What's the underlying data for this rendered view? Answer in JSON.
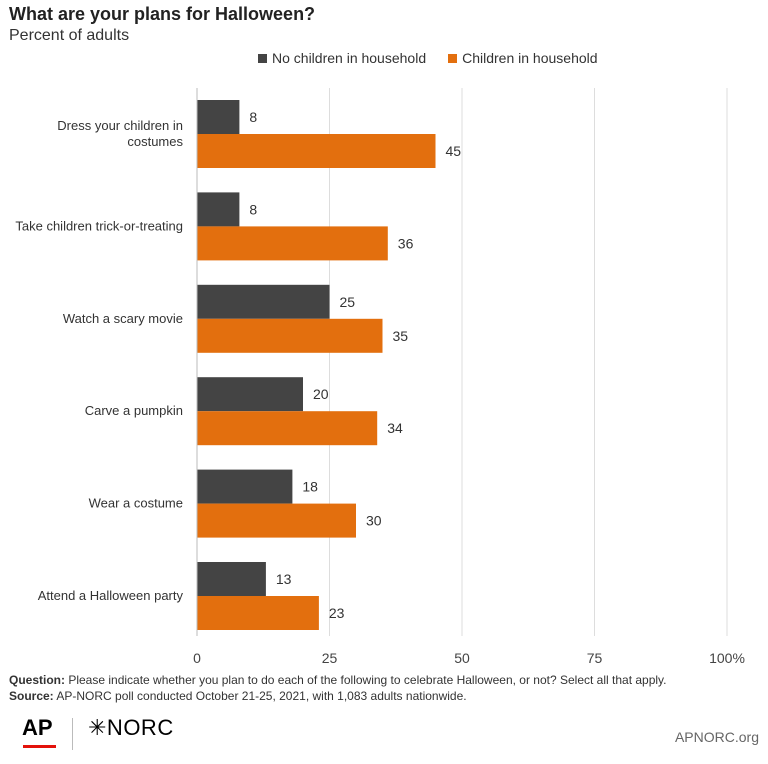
{
  "header": {
    "title": "What are your plans for Halloween?",
    "subtitle": "Percent of adults"
  },
  "legend": {
    "items": [
      {
        "label": "No children in household",
        "color": "#444444"
      },
      {
        "label": "Children in household",
        "color": "#e36f0e"
      }
    ]
  },
  "chart_data": {
    "type": "bar",
    "orientation": "horizontal",
    "categories": [
      [
        "Dress your children in",
        "costumes"
      ],
      [
        "Take children trick-or-treating"
      ],
      [
        "Watch a scary movie"
      ],
      [
        "Carve a pumpkin"
      ],
      [
        "Wear a costume"
      ],
      [
        "Attend a Halloween party"
      ]
    ],
    "series": [
      {
        "name": "No children in household",
        "color": "#444444",
        "values": [
          8,
          8,
          25,
          20,
          18,
          13
        ]
      },
      {
        "name": "Children in household",
        "color": "#e36f0e",
        "values": [
          45,
          36,
          35,
          34,
          30,
          23
        ]
      }
    ],
    "xlim": [
      0,
      100
    ],
    "x_ticks": [
      0,
      25,
      50,
      75,
      100
    ],
    "x_tick_labels": [
      "0",
      "25",
      "50",
      "75",
      "100%"
    ],
    "grid": true,
    "legend_position": "top"
  },
  "footer": {
    "question_label": "Question:",
    "question_text": " Please indicate whether you plan to do each of the following to celebrate Halloween, or not? Select all that apply.",
    "source_label": "Source:",
    "source_text": " AP-NORC poll conducted October 21-25, 2021, with 1,083 adults nationwide.",
    "logo_ap": "AP",
    "logo_norc": "✳NORC",
    "site": "APNORC.org"
  }
}
